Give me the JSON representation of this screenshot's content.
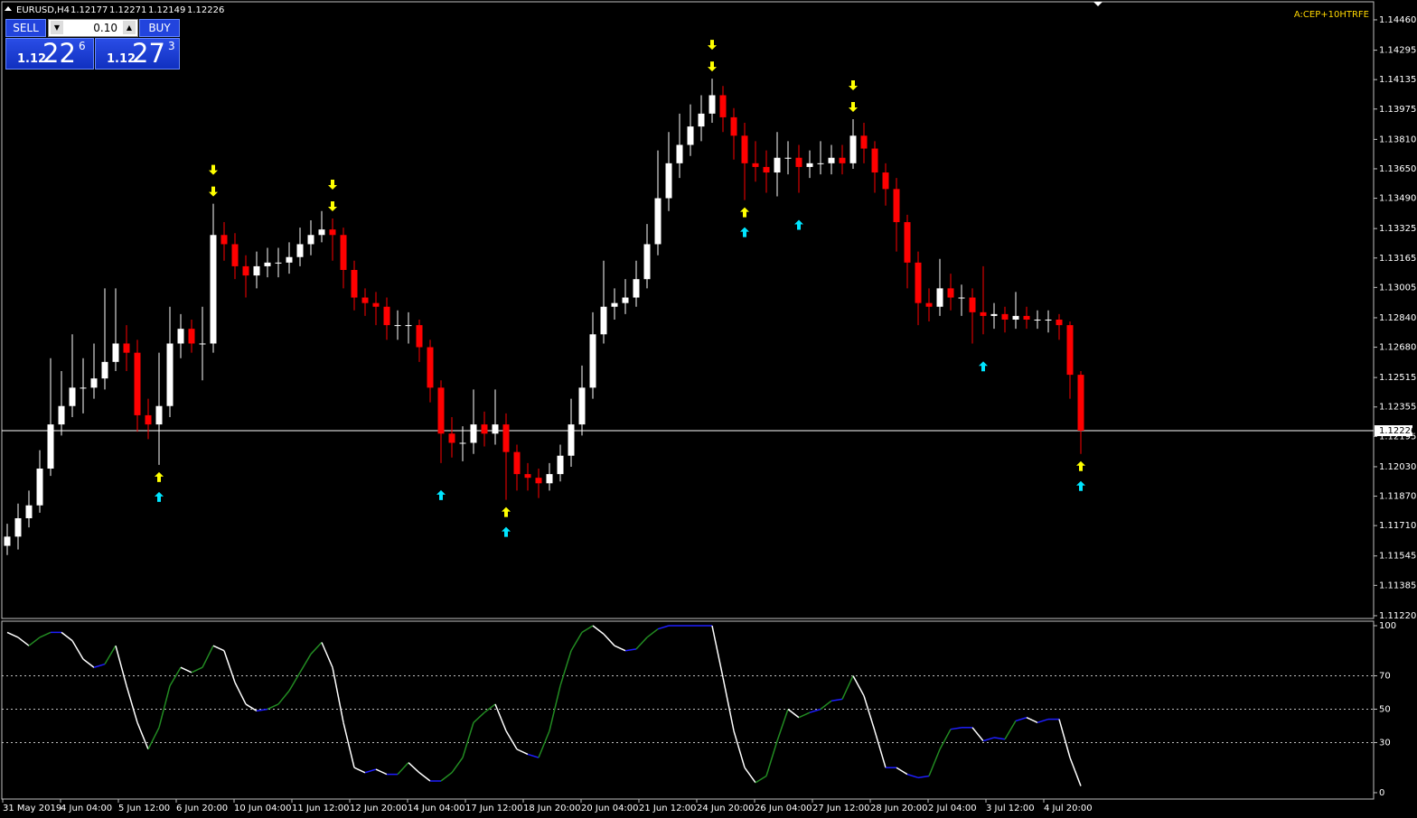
{
  "window": {
    "symbol": "EURUSD,H4",
    "ohlc": [
      "1.12177",
      "1.12271",
      "1.12149",
      "1.12226"
    ],
    "indicator_label": "A:CEP+10HTRFE"
  },
  "trade_panel": {
    "sell": "SELL",
    "buy": "BUY",
    "lot": "0.10",
    "bid": {
      "big": "1.12",
      "main": "22",
      "sup": "6"
    },
    "ask": {
      "big": "1.12",
      "main": "27",
      "sup": "3"
    }
  },
  "chart_data": [
    {
      "type": "candlestick",
      "ylim": [
        1.11205,
        1.14558
      ],
      "yticks": [
        {
          "value": 1.1446,
          "label": "1.14460"
        },
        {
          "value": 1.14295,
          "label": "1.14295"
        },
        {
          "value": 1.14135,
          "label": "1.14135"
        },
        {
          "value": 1.13975,
          "label": "1.13975"
        },
        {
          "value": 1.1381,
          "label": "1.13810"
        },
        {
          "value": 1.1365,
          "label": "1.13650"
        },
        {
          "value": 1.1349,
          "label": "1.13490"
        },
        {
          "value": 1.13325,
          "label": "1.13325"
        },
        {
          "value": 1.13165,
          "label": "1.13165"
        },
        {
          "value": 1.13005,
          "label": "1.13005"
        },
        {
          "value": 1.1284,
          "label": "1.12840"
        },
        {
          "value": 1.1268,
          "label": "1.12680"
        },
        {
          "value": 1.12515,
          "label": "1.12515"
        },
        {
          "value": 1.12355,
          "label": "1.12355"
        },
        {
          "value": 1.12195,
          "label": "1.12195"
        },
        {
          "value": 1.1203,
          "label": "1.12030"
        },
        {
          "value": 1.1187,
          "label": "1.11870"
        },
        {
          "value": 1.1171,
          "label": "1.11710"
        },
        {
          "value": 1.11545,
          "label": "1.11545"
        },
        {
          "value": 1.11385,
          "label": "1.11385"
        },
        {
          "value": 1.1122,
          "label": "1.11220"
        }
      ],
      "current_price": {
        "value": 1.12226,
        "label": "1.12226"
      },
      "xtick_labels": [
        "31 May 2019",
        "4 Jun 04:00",
        "5 Jun 12:00",
        "6 Jun 20:00",
        "10 Jun 04:00",
        "11 Jun 12:00",
        "12 Jun 20:00",
        "14 Jun 04:00",
        "17 Jun 12:00",
        "18 Jun 20:00",
        "20 Jun 04:00",
        "21 Jun 12:00",
        "24 Jun 20:00",
        "26 Jun 04:00",
        "27 Jun 12:00",
        "28 Jun 20:00",
        "2 Jul 04:00",
        "3 Jul 12:00",
        "4 Jul 20:00"
      ],
      "colors": {
        "bull": "#ffffff",
        "bear": "#ff0000",
        "signal": "#ffff00",
        "signal_alt": "#00e5ff",
        "price_line": "#ffffff"
      },
      "candles": {
        "open": [
          1.116,
          1.1165,
          1.1175,
          1.1182,
          1.1202,
          1.1226,
          1.1236,
          1.1246,
          1.1246,
          1.1251,
          1.126,
          1.127,
          1.1265,
          1.1231,
          1.1226,
          1.1236,
          1.127,
          1.1278,
          1.127,
          1.127,
          1.1329,
          1.1324,
          1.1312,
          1.1307,
          1.1312,
          1.1314,
          1.1314,
          1.1317,
          1.1324,
          1.1329,
          1.1332,
          1.1329,
          1.131,
          1.1295,
          1.1292,
          1.129,
          1.128,
          1.128,
          1.128,
          1.1268,
          1.1246,
          1.1221,
          1.1216,
          1.1216,
          1.1226,
          1.1221,
          1.1226,
          1.1211,
          1.1199,
          1.1197,
          1.1194,
          1.1199,
          1.1209,
          1.1226,
          1.1246,
          1.1275,
          1.129,
          1.1292,
          1.1295,
          1.1305,
          1.1324,
          1.1349,
          1.1368,
          1.1378,
          1.1388,
          1.1395,
          1.1405,
          1.1393,
          1.1383,
          1.1368,
          1.1366,
          1.1363,
          1.1371,
          1.1371,
          1.1366,
          1.1368,
          1.1368,
          1.1371,
          1.1368,
          1.1383,
          1.1376,
          1.1363,
          1.1354,
          1.1336,
          1.1314,
          1.1292,
          1.129,
          1.13,
          1.1295,
          1.1295,
          1.1287,
          1.1285,
          1.1286,
          1.1283,
          1.1285,
          1.1283,
          1.1283,
          1.1283,
          1.128,
          1.1253
        ],
        "high": [
          1.1172,
          1.1183,
          1.119,
          1.1212,
          1.1262,
          1.1255,
          1.1275,
          1.1262,
          1.127,
          1.13,
          1.13,
          1.128,
          1.1272,
          1.124,
          1.1265,
          1.129,
          1.1286,
          1.1283,
          1.129,
          1.1346,
          1.1336,
          1.133,
          1.1318,
          1.132,
          1.1322,
          1.1322,
          1.1325,
          1.1333,
          1.1337,
          1.1342,
          1.1338,
          1.1333,
          1.1315,
          1.13,
          1.1298,
          1.1295,
          1.1288,
          1.1287,
          1.1283,
          1.1272,
          1.125,
          1.123,
          1.1225,
          1.1245,
          1.1233,
          1.1245,
          1.1232,
          1.1215,
          1.1205,
          1.1202,
          1.1205,
          1.1215,
          1.124,
          1.1258,
          1.1287,
          1.1315,
          1.13,
          1.1305,
          1.1315,
          1.1335,
          1.1375,
          1.1385,
          1.1395,
          1.14,
          1.1405,
          1.1414,
          1.141,
          1.1398,
          1.139,
          1.138,
          1.1375,
          1.1385,
          1.138,
          1.1378,
          1.1375,
          1.138,
          1.1378,
          1.1378,
          1.1392,
          1.139,
          1.138,
          1.1368,
          1.136,
          1.134,
          1.132,
          1.13,
          1.1316,
          1.1308,
          1.1302,
          1.13,
          1.1312,
          1.1292,
          1.129,
          1.1298,
          1.129,
          1.1288,
          1.1288,
          1.1286,
          1.1282,
          1.1255
        ],
        "low": [
          1.1155,
          1.1158,
          1.117,
          1.1178,
          1.1198,
          1.122,
          1.123,
          1.1232,
          1.124,
          1.1245,
          1.1255,
          1.1255,
          1.1222,
          1.1218,
          1.1204,
          1.123,
          1.1262,
          1.1265,
          1.125,
          1.1265,
          1.1315,
          1.1305,
          1.1295,
          1.13,
          1.1306,
          1.1306,
          1.1308,
          1.1312,
          1.1318,
          1.1325,
          1.1315,
          1.13,
          1.1288,
          1.1285,
          1.128,
          1.1272,
          1.1272,
          1.127,
          1.126,
          1.1238,
          1.1205,
          1.1208,
          1.1206,
          1.121,
          1.1214,
          1.1215,
          1.1185,
          1.119,
          1.119,
          1.1186,
          1.119,
          1.1195,
          1.1203,
          1.122,
          1.124,
          1.127,
          1.1283,
          1.1286,
          1.129,
          1.13,
          1.1318,
          1.1342,
          1.136,
          1.1372,
          1.138,
          1.139,
          1.1385,
          1.137,
          1.1348,
          1.1358,
          1.1352,
          1.135,
          1.1362,
          1.1352,
          1.136,
          1.1362,
          1.1362,
          1.1362,
          1.1365,
          1.1368,
          1.1352,
          1.1345,
          1.132,
          1.13,
          1.128,
          1.1282,
          1.1285,
          1.1288,
          1.1285,
          1.127,
          1.1275,
          1.1278,
          1.1276,
          1.1278,
          1.1278,
          1.1278,
          1.1276,
          1.1272,
          1.124,
          1.121
        ],
        "close": [
          1.1165,
          1.1175,
          1.1182,
          1.1202,
          1.1226,
          1.1236,
          1.1246,
          1.1246,
          1.1251,
          1.126,
          1.127,
          1.1265,
          1.1231,
          1.1226,
          1.1236,
          1.127,
          1.1278,
          1.127,
          1.127,
          1.1329,
          1.1324,
          1.1312,
          1.1307,
          1.1312,
          1.1314,
          1.1314,
          1.1317,
          1.1324,
          1.1329,
          1.1332,
          1.1329,
          1.131,
          1.1295,
          1.1292,
          1.129,
          1.128,
          1.128,
          1.128,
          1.1268,
          1.1246,
          1.1221,
          1.1216,
          1.1216,
          1.1226,
          1.1221,
          1.1226,
          1.1211,
          1.1199,
          1.1197,
          1.1194,
          1.1199,
          1.1209,
          1.1226,
          1.1246,
          1.1275,
          1.129,
          1.1292,
          1.1295,
          1.1305,
          1.1324,
          1.1349,
          1.1368,
          1.1378,
          1.1388,
          1.1395,
          1.1405,
          1.1393,
          1.1383,
          1.1368,
          1.1366,
          1.1363,
          1.1371,
          1.1371,
          1.1366,
          1.1368,
          1.1368,
          1.1371,
          1.1368,
          1.1383,
          1.1376,
          1.1363,
          1.1354,
          1.1336,
          1.1314,
          1.1292,
          1.129,
          1.13,
          1.1295,
          1.1295,
          1.1287,
          1.1285,
          1.1286,
          1.1283,
          1.1285,
          1.1283,
          1.1283,
          1.1283,
          1.128,
          1.1253,
          1.12226
        ]
      },
      "signals": {
        "down": [
          19,
          30,
          65,
          78
        ],
        "up": [
          14,
          46,
          68,
          99
        ],
        "up_alt": [
          14,
          40,
          46,
          68,
          73,
          90,
          99
        ]
      }
    },
    {
      "type": "line",
      "ylim": [
        -3.8,
        102.7
      ],
      "yticks": [
        100,
        70,
        50,
        30,
        0
      ],
      "levels": [
        70,
        50,
        30
      ],
      "colors": {
        "up": "#228b22",
        "down": "#ffffff",
        "flat": "#1e1eff"
      },
      "values": [
        96,
        93,
        88,
        93,
        96,
        96,
        91,
        80,
        75,
        77,
        88,
        64,
        42,
        26,
        39,
        64,
        75,
        72,
        75,
        88,
        85,
        66,
        53,
        49,
        50,
        53,
        61,
        72,
        83,
        90,
        75,
        42,
        15,
        12,
        14,
        11,
        11,
        18,
        12,
        7,
        7,
        12,
        21,
        42,
        48,
        53,
        37,
        26,
        23,
        21,
        37,
        64,
        85,
        96,
        100,
        95,
        88,
        85,
        86,
        93,
        98,
        100,
        100,
        100,
        100,
        100,
        69,
        37,
        15,
        6,
        10,
        31,
        50,
        45,
        48,
        50,
        55,
        56,
        70,
        58,
        37,
        15,
        15,
        11,
        9,
        10,
        26,
        38,
        39,
        39,
        31,
        33,
        32,
        43,
        45,
        42,
        44,
        44,
        21,
        4
      ]
    }
  ]
}
